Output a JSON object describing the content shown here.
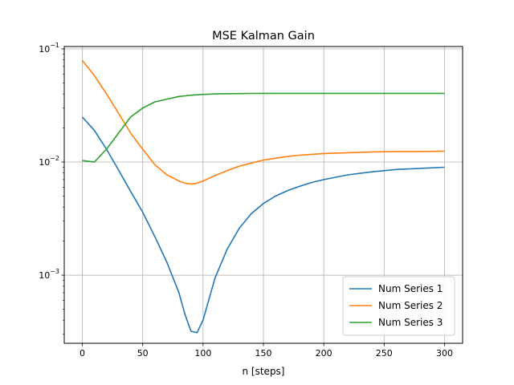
{
  "chart_data": {
    "type": "line",
    "title": "MSE Kalman Gain",
    "xlabel": "n [steps]",
    "ylabel": "",
    "yscale": "log",
    "xlim": [
      -15,
      315
    ],
    "ylim": [
      0.00025,
      0.105
    ],
    "grid": true,
    "legend_position": "lower-right",
    "x_ticks": [
      0,
      50,
      100,
      150,
      200,
      250,
      300
    ],
    "y_ticks": [
      {
        "value": 0.001,
        "base": "10",
        "exp": "−3"
      },
      {
        "value": 0.01,
        "base": "10",
        "exp": "−2"
      },
      {
        "value": 0.1,
        "base": "10",
        "exp": "−1"
      }
    ],
    "x": [
      0,
      10,
      20,
      30,
      40,
      50,
      60,
      70,
      80,
      85,
      90,
      95,
      100,
      105,
      110,
      120,
      130,
      140,
      150,
      160,
      170,
      180,
      190,
      200,
      220,
      240,
      260,
      280,
      300
    ],
    "series": [
      {
        "name": "Num Series 1",
        "color": "#1f77b4",
        "values": [
          0.025,
          0.019,
          0.013,
          0.0085,
          0.0055,
          0.0036,
          0.0022,
          0.0013,
          0.0007,
          0.00045,
          0.00032,
          0.00031,
          0.0004,
          0.00062,
          0.00095,
          0.0017,
          0.0026,
          0.0035,
          0.0043,
          0.005,
          0.0056,
          0.0061,
          0.0066,
          0.007,
          0.0077,
          0.0082,
          0.0086,
          0.0088,
          0.009
        ]
      },
      {
        "name": "Num Series 2",
        "color": "#ff7f0e",
        "values": [
          0.079,
          0.058,
          0.04,
          0.027,
          0.018,
          0.013,
          0.0095,
          0.0077,
          0.0068,
          0.0065,
          0.0064,
          0.0065,
          0.0068,
          0.0072,
          0.0076,
          0.0084,
          0.0092,
          0.0098,
          0.0104,
          0.0108,
          0.0112,
          0.0115,
          0.0117,
          0.0119,
          0.0121,
          0.0123,
          0.0124,
          0.0124,
          0.0125
        ]
      },
      {
        "name": "Num Series 3",
        "color": "#2ca02c",
        "values": [
          0.0103,
          0.01,
          0.013,
          0.018,
          0.025,
          0.03,
          0.034,
          0.036,
          0.038,
          0.0385,
          0.039,
          0.0393,
          0.0396,
          0.0398,
          0.04,
          0.0402,
          0.0403,
          0.0404,
          0.0405,
          0.0405,
          0.0405,
          0.0405,
          0.0405,
          0.0405,
          0.0405,
          0.0405,
          0.0405,
          0.0405,
          0.0405
        ]
      }
    ]
  }
}
